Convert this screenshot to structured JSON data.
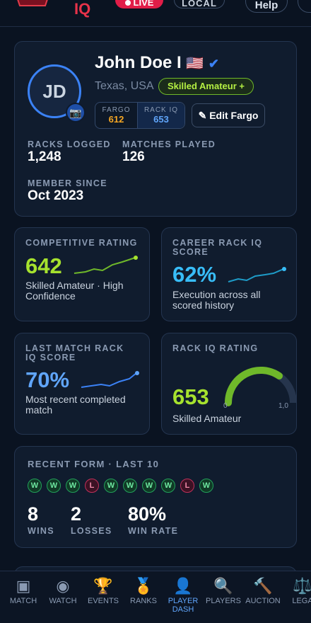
{
  "header": {
    "brand": "IQ",
    "live": "LIVE",
    "local": "LOCAL",
    "help": "Help"
  },
  "profile": {
    "initials": "JD",
    "camera_icon": "📷",
    "name": "John Doe I",
    "flag": "🇺🇸",
    "verified": "✔",
    "location": "Texas, USA",
    "badge": "Skilled Amateur +",
    "fargo": {
      "label": "FARGO",
      "value": "612"
    },
    "rack_iq": {
      "label": "RACK IQ",
      "value": "653"
    },
    "edit_button": "✎ Edit Fargo",
    "stats": [
      {
        "label": "RACKS LOGGED",
        "value": "1,248"
      },
      {
        "label": "MATCHES PLAYED",
        "value": "126"
      },
      {
        "label": "MEMBER SINCE",
        "value": "Oct 2023"
      }
    ]
  },
  "cards": [
    {
      "title": "COMPETITIVE RATING",
      "value": "642",
      "caption": "Skilled Amateur · High Confidence"
    },
    {
      "title": "CAREER RACK IQ SCORE",
      "value": "62%",
      "caption": "Execution across all scored history"
    },
    {
      "title": "LAST MATCH RACK IQ SCORE",
      "value": "70%",
      "caption": "Most recent completed match"
    },
    {
      "title": "RACK IQ RATING",
      "value": "653",
      "caption": "Skilled Amateur",
      "gauge_min": "0",
      "gauge_max": "1,0"
    }
  ],
  "recent_form": {
    "title": "RECENT FORM · LAST 10",
    "results": [
      "W",
      "W",
      "W",
      "L",
      "W",
      "W",
      "W",
      "W",
      "L",
      "W"
    ],
    "stats": [
      {
        "value": "8",
        "label": "WINS"
      },
      {
        "value": "2",
        "label": "LOSSES"
      },
      {
        "value": "80%",
        "label": "WIN RATE"
      }
    ]
  },
  "nav": [
    {
      "icon": "▣",
      "label": "MATCH"
    },
    {
      "icon": "◉",
      "label": "WATCH"
    },
    {
      "icon": "🏆",
      "label": "EVENTS"
    },
    {
      "icon": "🏅",
      "label": "RANKS"
    },
    {
      "icon": "👤",
      "label": "PLAYER DASH"
    },
    {
      "icon": "🔍",
      "label": "PLAYERS"
    },
    {
      "icon": "🔨",
      "label": "AUCTION"
    },
    {
      "icon": "⚖️",
      "label": "LEGA"
    }
  ]
}
